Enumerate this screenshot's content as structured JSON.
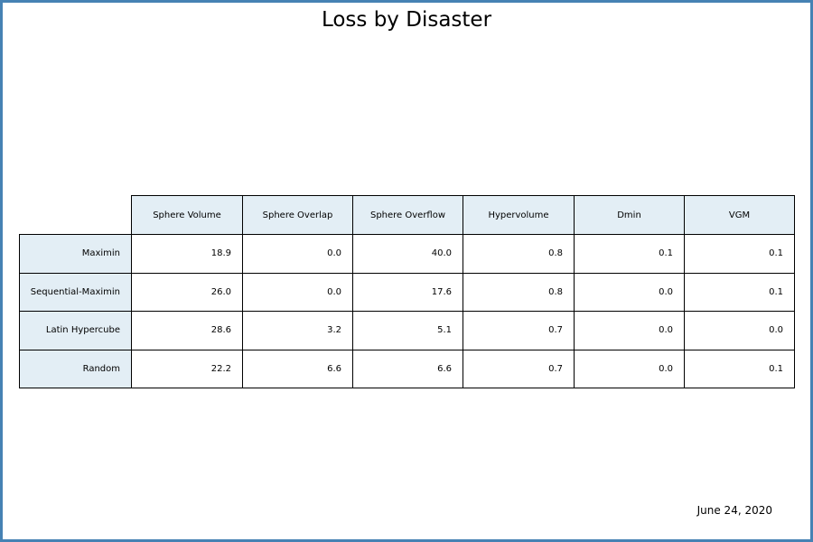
{
  "chart_data": {
    "type": "table",
    "title": "Loss by Disaster",
    "columns": [
      "Sphere Volume",
      "Sphere Overlap",
      "Sphere Overflow",
      "Hypervolume",
      "Dmin",
      "VGM"
    ],
    "rows": [
      {
        "label": "Maximin",
        "values": [
          "18.9",
          "0.0",
          "40.0",
          "0.8",
          "0.1",
          "0.1"
        ]
      },
      {
        "label": "Sequential-Maximin",
        "values": [
          "26.0",
          "0.0",
          "17.6",
          "0.8",
          "0.0",
          "0.1"
        ]
      },
      {
        "label": "Latin Hypercube",
        "values": [
          "28.6",
          "3.2",
          "5.1",
          "0.7",
          "0.0",
          "0.0"
        ]
      },
      {
        "label": "Random",
        "values": [
          "22.2",
          "6.6",
          "6.6",
          "0.7",
          "0.0",
          "0.1"
        ]
      }
    ],
    "footer_text": "June 24, 2020",
    "colors": {
      "frame": "#4682b4",
      "header_fill": "#e3eef5",
      "cell_border": "#000000"
    }
  }
}
